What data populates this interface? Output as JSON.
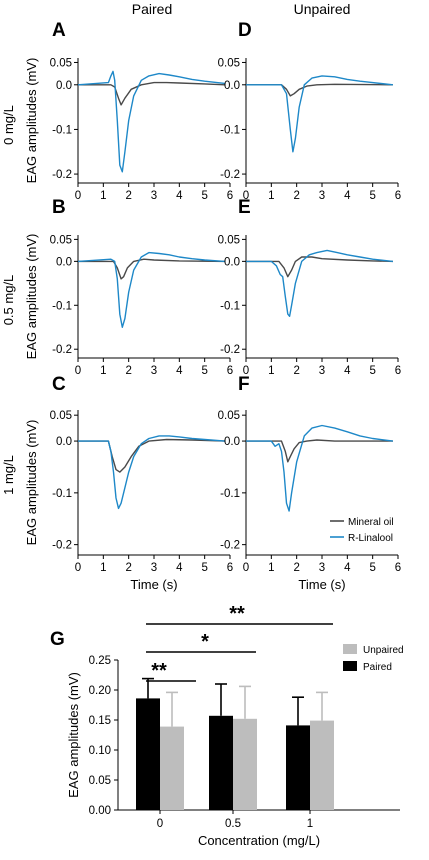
{
  "figure": {
    "column_titles": [
      "Paired",
      "Unpaired"
    ],
    "row_labels": [
      "0 mg/L",
      "0.5 mg/L",
      "1 mg/L"
    ],
    "trace_ylabel": "EAG amplitudes (mV)",
    "trace_xlabel": "Time (s)",
    "legend": [
      "Mineral oil",
      "R-Linalool"
    ],
    "colors": {
      "mineral_oil": "#4a4a4a",
      "linalool": "#1e88c8",
      "paired": "#000000",
      "unpaired": "#bdbdbd"
    }
  },
  "chart_data": [
    {
      "type": "line",
      "panel": "A",
      "column": "Paired",
      "row": "0 mg/L",
      "xlabel": "",
      "ylabel": "EAG amplitudes (mV)",
      "xlim": [
        0,
        6
      ],
      "ylim": [
        -0.22,
        0.06
      ],
      "xticks": [
        "0",
        "1",
        "2",
        "3",
        "4",
        "5",
        "6"
      ],
      "yticks": [
        "0.05",
        "0.0",
        "-0.1",
        "-0.2"
      ],
      "series": [
        {
          "name": "Mineral oil",
          "x": [
            0.0,
            1.3,
            1.45,
            1.6,
            1.7,
            1.85,
            2.1,
            2.5,
            3.0,
            3.5,
            4.0,
            5.0,
            5.8
          ],
          "y": [
            0.0,
            0.0,
            -0.005,
            -0.03,
            -0.045,
            -0.03,
            -0.01,
            0.0,
            0.005,
            0.005,
            0.004,
            0.002,
            0.0
          ]
        },
        {
          "name": "R-Linalool",
          "x": [
            0.0,
            1.2,
            1.3,
            1.38,
            1.45,
            1.55,
            1.65,
            1.75,
            1.85,
            2.0,
            2.2,
            2.5,
            2.8,
            3.2,
            3.6,
            4.0,
            4.5,
            5.0,
            5.8
          ],
          "y": [
            0.0,
            0.005,
            0.02,
            0.03,
            0.01,
            -0.08,
            -0.18,
            -0.195,
            -0.15,
            -0.08,
            -0.025,
            0.01,
            0.02,
            0.025,
            0.022,
            0.018,
            0.012,
            0.008,
            0.003
          ]
        }
      ]
    },
    {
      "type": "line",
      "panel": "D",
      "column": "Unpaired",
      "row": "0 mg/L",
      "xlabel": "",
      "ylabel": "",
      "xlim": [
        0,
        6
      ],
      "ylim": [
        -0.22,
        0.06
      ],
      "xticks": [
        "0",
        "1",
        "2",
        "3",
        "4",
        "5",
        "6"
      ],
      "yticks": [
        "0.05",
        "0.0",
        "-0.1",
        "-0.2"
      ],
      "series": [
        {
          "name": "Mineral oil",
          "x": [
            0.0,
            1.4,
            1.6,
            1.75,
            1.9,
            2.1,
            2.4,
            2.8,
            3.5,
            5.8
          ],
          "y": [
            0.0,
            0.0,
            -0.01,
            -0.025,
            -0.02,
            -0.01,
            -0.003,
            0.0,
            0.001,
            0.0
          ]
        },
        {
          "name": "R-Linalool",
          "x": [
            0.0,
            1.4,
            1.6,
            1.75,
            1.85,
            1.95,
            2.1,
            2.3,
            2.6,
            3.0,
            3.5,
            4.0,
            4.5,
            5.0,
            5.8
          ],
          "y": [
            0.0,
            0.0,
            -0.02,
            -0.1,
            -0.15,
            -0.12,
            -0.05,
            0.0,
            0.015,
            0.02,
            0.018,
            0.012,
            0.008,
            0.005,
            0.0
          ]
        }
      ]
    },
    {
      "type": "line",
      "panel": "B",
      "column": "Paired",
      "row": "0.5 mg/L",
      "xlabel": "",
      "ylabel": "EAG amplitudes (mV)",
      "xlim": [
        0,
        6
      ],
      "ylim": [
        -0.22,
        0.06
      ],
      "xticks": [
        "0",
        "1",
        "2",
        "3",
        "4",
        "5",
        "6"
      ],
      "yticks": [
        "0.05",
        "0.0",
        "-0.1",
        "-0.2"
      ],
      "series": [
        {
          "name": "Mineral oil",
          "x": [
            0.0,
            1.4,
            1.55,
            1.7,
            1.8,
            1.95,
            2.2,
            2.6,
            3.0,
            4.0,
            5.8
          ],
          "y": [
            0.0,
            0.0,
            -0.015,
            -0.04,
            -0.035,
            -0.015,
            0.0,
            0.005,
            0.003,
            0.001,
            0.0
          ]
        },
        {
          "name": "R-Linalool",
          "x": [
            0.0,
            1.3,
            1.45,
            1.55,
            1.65,
            1.75,
            1.85,
            2.0,
            2.2,
            2.5,
            2.8,
            3.2,
            3.6,
            4.0,
            4.5,
            5.0,
            5.8
          ],
          "y": [
            0.0,
            0.005,
            0.0,
            -0.04,
            -0.12,
            -0.15,
            -0.13,
            -0.07,
            -0.02,
            0.01,
            0.02,
            0.018,
            0.015,
            0.01,
            0.006,
            0.003,
            0.0
          ]
        }
      ]
    },
    {
      "type": "line",
      "panel": "E",
      "column": "Unpaired",
      "row": "0.5 mg/L",
      "xlabel": "",
      "ylabel": "",
      "xlim": [
        0,
        6
      ],
      "ylim": [
        -0.22,
        0.06
      ],
      "xticks": [
        "0",
        "1",
        "2",
        "3",
        "4",
        "5",
        "6"
      ],
      "yticks": [
        "0.05",
        "0.0",
        "-0.1",
        "-0.2"
      ],
      "series": [
        {
          "name": "Mineral oil",
          "x": [
            0.0,
            1.3,
            1.5,
            1.65,
            1.8,
            1.95,
            2.2,
            2.6,
            3.0,
            4.0,
            5.0,
            5.8
          ],
          "y": [
            0.0,
            0.0,
            -0.015,
            -0.035,
            -0.02,
            0.0,
            0.01,
            0.01,
            0.006,
            0.003,
            0.001,
            0.0
          ]
        },
        {
          "name": "R-Linalool",
          "x": [
            0.0,
            1.0,
            1.2,
            1.35,
            1.45,
            1.55,
            1.65,
            1.72,
            1.8,
            1.95,
            2.2,
            2.5,
            2.8,
            3.2,
            3.6,
            4.0,
            4.5,
            5.0,
            5.8
          ],
          "y": [
            0.0,
            0.0,
            -0.01,
            -0.03,
            -0.035,
            -0.08,
            -0.12,
            -0.125,
            -0.1,
            -0.05,
            0.0,
            0.015,
            0.02,
            0.025,
            0.02,
            0.015,
            0.01,
            0.005,
            0.0
          ]
        }
      ]
    },
    {
      "type": "line",
      "panel": "C",
      "column": "Paired",
      "row": "1 mg/L",
      "xlabel": "Time (s)",
      "ylabel": "EAG amplitudes (mV)",
      "xlim": [
        0,
        6
      ],
      "ylim": [
        -0.22,
        0.06
      ],
      "xticks": [
        "0",
        "1",
        "2",
        "3",
        "4",
        "5",
        "6"
      ],
      "yticks": [
        "0.05",
        "0.0",
        "-0.1",
        "-0.2"
      ],
      "series": [
        {
          "name": "Mineral oil",
          "x": [
            0.0,
            1.2,
            1.35,
            1.5,
            1.65,
            1.85,
            2.1,
            2.4,
            2.8,
            3.5,
            4.5,
            5.8
          ],
          "y": [
            0.0,
            0.0,
            -0.03,
            -0.055,
            -0.06,
            -0.05,
            -0.03,
            -0.01,
            0.0,
            0.003,
            0.002,
            0.0
          ]
        },
        {
          "name": "R-Linalool",
          "x": [
            0.0,
            1.2,
            1.3,
            1.4,
            1.5,
            1.6,
            1.7,
            1.85,
            2.0,
            2.2,
            2.5,
            2.8,
            3.2,
            3.6,
            4.0,
            4.5,
            5.0,
            5.8
          ],
          "y": [
            0.0,
            0.0,
            -0.02,
            -0.06,
            -0.11,
            -0.13,
            -0.12,
            -0.09,
            -0.06,
            -0.03,
            -0.005,
            0.005,
            0.01,
            0.01,
            0.008,
            0.005,
            0.003,
            0.0
          ]
        }
      ]
    },
    {
      "type": "line",
      "panel": "F",
      "column": "Unpaired",
      "row": "1 mg/L",
      "xlabel": "Time (s)",
      "ylabel": "",
      "xlim": [
        0,
        6
      ],
      "ylim": [
        -0.22,
        0.06
      ],
      "xticks": [
        "0",
        "1",
        "2",
        "3",
        "4",
        "5",
        "6"
      ],
      "yticks": [
        "0.05",
        "0.0",
        "-0.1",
        "-0.2"
      ],
      "series": [
        {
          "name": "Mineral oil",
          "x": [
            0.0,
            1.4,
            1.55,
            1.65,
            1.75,
            1.9,
            2.1,
            2.4,
            2.8,
            3.5,
            5.8
          ],
          "y": [
            0.0,
            0.0,
            -0.02,
            -0.04,
            -0.03,
            -0.015,
            -0.003,
            0.0,
            0.002,
            0.0,
            0.0
          ]
        },
        {
          "name": "R-Linalool",
          "x": [
            0.0,
            1.0,
            1.15,
            1.3,
            1.4,
            1.5,
            1.6,
            1.7,
            1.8,
            2.0,
            2.3,
            2.6,
            3.0,
            3.5,
            4.0,
            4.5,
            5.0,
            5.8
          ],
          "y": [
            0.0,
            0.0,
            -0.01,
            -0.005,
            -0.02,
            -0.06,
            -0.12,
            -0.135,
            -0.1,
            -0.04,
            0.01,
            0.025,
            0.03,
            0.025,
            0.018,
            0.01,
            0.005,
            0.0
          ]
        }
      ]
    },
    {
      "type": "bar",
      "panel": "G",
      "categories": [
        "0",
        "0.5",
        "1"
      ],
      "xlabel": "Concentration (mg/L)",
      "ylabel": "EAG amplitudes (mV)",
      "ylim": [
        0.0,
        0.25
      ],
      "yticks": [
        "0.00",
        "0.05",
        "0.10",
        "0.15",
        "0.20",
        "0.25"
      ],
      "legend": "top-right",
      "series": [
        {
          "name": "Paired",
          "values": [
            0.186,
            0.157,
            0.141
          ],
          "errors": [
            0.033,
            0.053,
            0.047
          ]
        },
        {
          "name": "Unpaired",
          "values": [
            0.139,
            0.152,
            0.149
          ],
          "errors": [
            0.057,
            0.054,
            0.047
          ]
        }
      ],
      "significance": [
        {
          "label": "**",
          "from": "0",
          "to": "0"
        },
        {
          "label": "*",
          "from": "0",
          "to": "0.5"
        },
        {
          "label": "**",
          "from": "0",
          "to": "1"
        }
      ]
    }
  ]
}
